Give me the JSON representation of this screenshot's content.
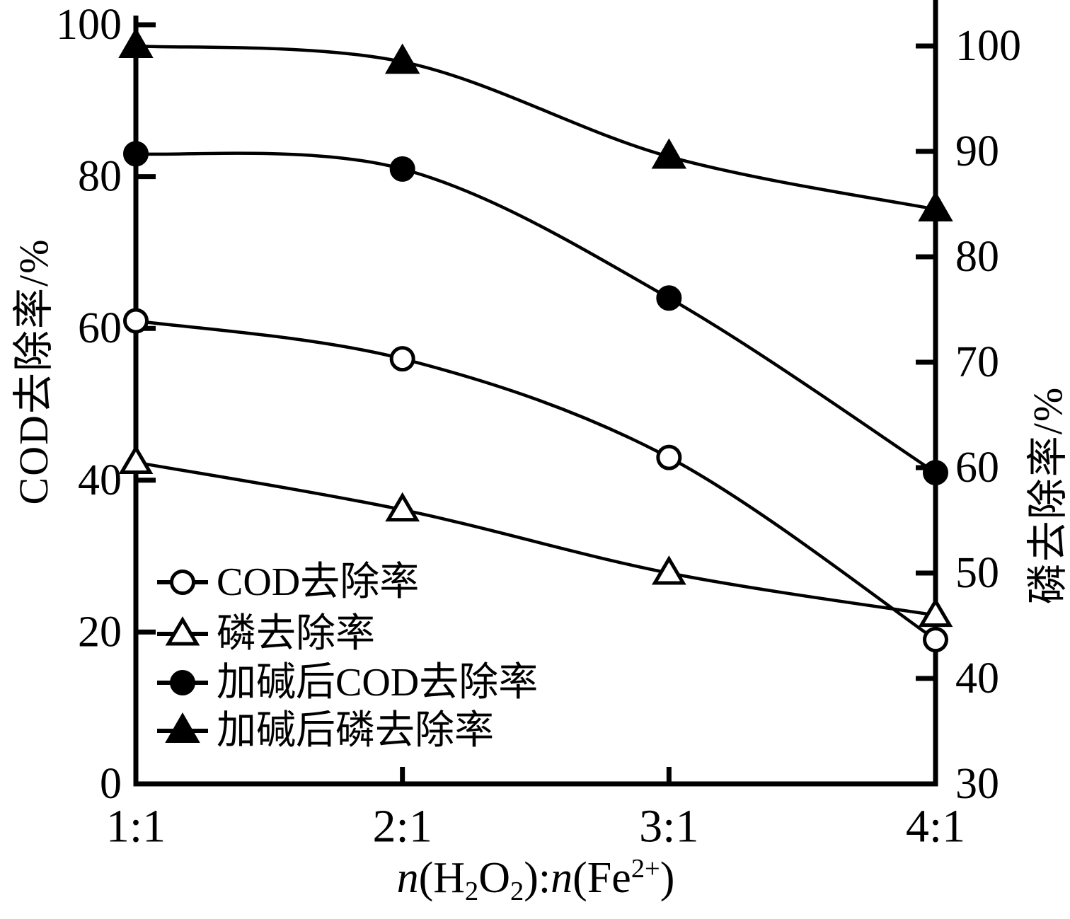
{
  "figure": {
    "background": "#ffffff",
    "ink": "#000000"
  },
  "chart_data": {
    "type": "line",
    "grid": false,
    "categories": [
      "1:1",
      "2:1",
      "3:1",
      "4:1"
    ],
    "x_axis": {
      "tick_labels": [
        "1:1",
        "2:1",
        "3:1",
        "4:1"
      ],
      "title_text": "n(H2O2):n(Fe2+)",
      "title_parts": [
        {
          "t": "n",
          "s": "it"
        },
        {
          "t": "(H"
        },
        {
          "t": "2",
          "s": "sub"
        },
        {
          "t": "O"
        },
        {
          "t": "2",
          "s": "sub"
        },
        {
          "t": ")"
        },
        {
          "t": ":"
        },
        {
          "t": "n",
          "s": "it"
        },
        {
          "t": "(Fe"
        },
        {
          "t": "2+",
          "s": "sup"
        },
        {
          "t": ")"
        }
      ]
    },
    "left_axis": {
      "label": "COD去除率/%",
      "range": [
        0,
        100
      ],
      "ticks": [
        0,
        20,
        40,
        60,
        80,
        100
      ]
    },
    "right_axis": {
      "label": "磷去除率/%",
      "range": [
        30,
        100
      ],
      "ticks": [
        30,
        40,
        50,
        60,
        70,
        80,
        90,
        100
      ]
    },
    "series": [
      {
        "id": "cod",
        "name": "COD去除率",
        "axis": "left",
        "marker": "open-circle",
        "values": [
          61,
          56,
          43,
          19
        ]
      },
      {
        "id": "p",
        "name": "磷去除率",
        "axis": "right",
        "marker": "open-triangle",
        "values": [
          60.5,
          56,
          50,
          46
        ]
      },
      {
        "id": "cod-alkali",
        "name": "加碱后COD去除率",
        "axis": "left",
        "marker": "filled-circle",
        "values": [
          83,
          81,
          64,
          41
        ]
      },
      {
        "id": "p-alkali",
        "name": "加碱后磷去除率",
        "axis": "right",
        "marker": "filled-triangle",
        "values": [
          100,
          98.5,
          89.5,
          84.5
        ]
      }
    ],
    "legend": {
      "position": "inside-bottom-left",
      "entries": [
        "COD去除率",
        "磷去除率",
        "加碱后COD去除率",
        "加碱后磷去除率"
      ]
    }
  }
}
